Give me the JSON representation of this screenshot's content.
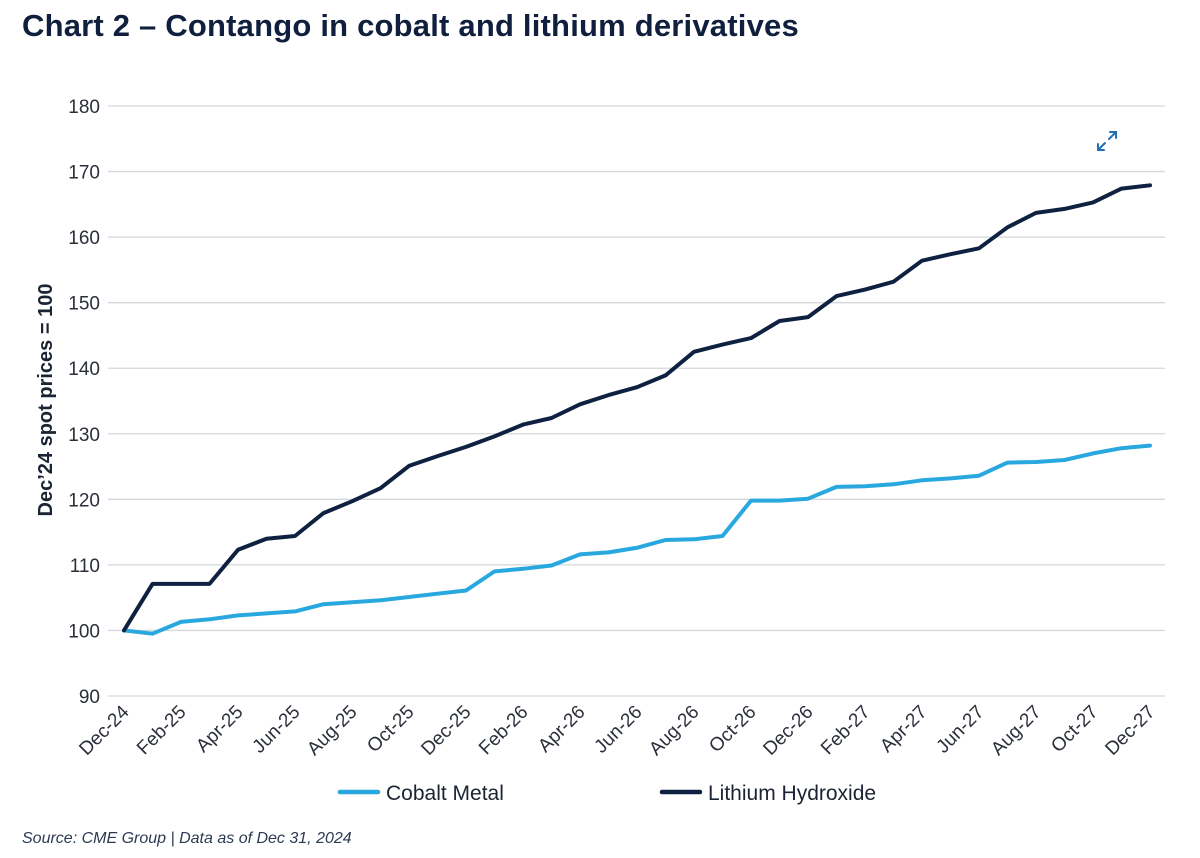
{
  "title": "Chart 2 – Contango in cobalt and lithium derivatives",
  "source": "Source: CME Group | Data as of Dec 31, 2024",
  "expand_icon": "expand-icon",
  "chart_data": {
    "type": "line",
    "title": "Chart 2 – Contango in cobalt and lithium derivatives",
    "xlabel": "",
    "ylabel": "Dec’24 spot prices = 100",
    "ylim": [
      90,
      180
    ],
    "yticks": [
      90,
      100,
      110,
      120,
      130,
      140,
      150,
      160,
      170,
      180
    ],
    "x": [
      "Dec-24",
      "Jan-25",
      "Feb-25",
      "Mar-25",
      "Apr-25",
      "May-25",
      "Jun-25",
      "Jul-25",
      "Aug-25",
      "Sep-25",
      "Oct-25",
      "Nov-25",
      "Dec-25",
      "Jan-26",
      "Feb-26",
      "Mar-26",
      "Apr-26",
      "May-26",
      "Jun-26",
      "Jul-26",
      "Aug-26",
      "Sep-26",
      "Oct-26",
      "Nov-26",
      "Dec-26",
      "Jan-27",
      "Feb-27",
      "Mar-27",
      "Apr-27",
      "May-27",
      "Jun-27",
      "Jul-27",
      "Aug-27",
      "Sep-27",
      "Oct-27",
      "Nov-27",
      "Dec-27"
    ],
    "xtick_labels": [
      "Dec-24",
      "Feb-25",
      "Apr-25",
      "Jun-25",
      "Aug-25",
      "Oct-25",
      "Dec-25",
      "Feb-26",
      "Apr-26",
      "Jun-26",
      "Aug-26",
      "Oct-26",
      "Dec-26",
      "Feb-27",
      "Apr-27",
      "Jun-27",
      "Aug-27",
      "Oct-27",
      "Dec-27"
    ],
    "grid": true,
    "legend": "bottom",
    "series": [
      {
        "name": "Cobalt Metal",
        "color": "#29a8e0",
        "values": [
          100,
          99.5,
          101.3,
          101.7,
          102.3,
          102.6,
          102.9,
          104.0,
          104.3,
          104.6,
          105.1,
          105.6,
          106.1,
          109.0,
          109.4,
          109.9,
          111.6,
          111.9,
          112.6,
          113.8,
          113.9,
          114.4,
          119.8,
          119.8,
          120.1,
          121.9,
          122.0,
          122.3,
          122.9,
          123.2,
          123.6,
          125.6,
          125.7,
          126.0,
          127.0,
          127.8,
          128.2
        ]
      },
      {
        "name": "Lithium Hydroxide",
        "color": "#0f2140",
        "values": [
          100,
          107.1,
          107.1,
          107.1,
          112.3,
          114.0,
          114.4,
          117.9,
          119.7,
          121.7,
          125.1,
          126.6,
          128.0,
          129.6,
          131.4,
          132.4,
          134.5,
          135.9,
          137.1,
          138.9,
          142.5,
          143.6,
          144.6,
          147.2,
          147.8,
          151.0,
          152.0,
          153.2,
          156.4,
          157.4,
          158.3,
          161.5,
          163.7,
          164.3,
          165.3,
          167.4,
          167.9
        ]
      }
    ]
  }
}
